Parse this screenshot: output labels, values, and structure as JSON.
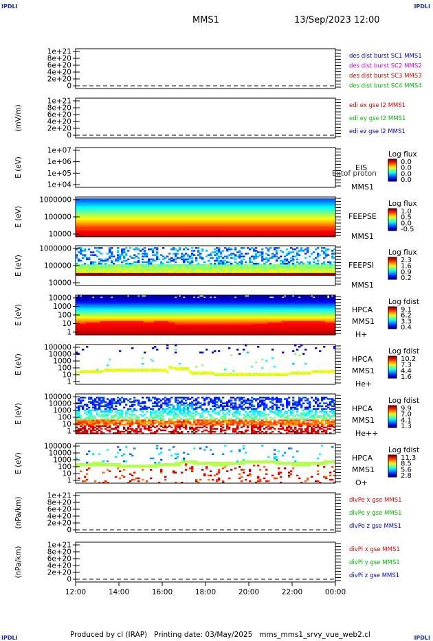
{
  "corners": {
    "tl": "IPDLI",
    "tr": "IPDLI",
    "bl": "IPDLI",
    "br": "IPDLI"
  },
  "header": {
    "spacecraft": "MMS1",
    "datetime": "13/Sep/2023 12:00"
  },
  "footer": "Produced by cl (IRAP)   Printing date: 03/May/2025   mms_mms1_srvy_vue_web2.cl",
  "colors": {
    "red": "#dd0000",
    "magenta": "#dd00dd",
    "green": "#00bb00",
    "blue": "#0000cc",
    "black": "#000000"
  },
  "chart_data": [
    {
      "type": "line",
      "id": "dist",
      "ylabel": "",
      "ticks": [
        "1e+21",
        "8e+20",
        "6e+20",
        "4e+20",
        "2e+20",
        "0"
      ],
      "legend": [
        {
          "text": "des dist burst SC1 MMS1",
          "color": "#0000cc"
        },
        {
          "text": "des dist burst SC2 MMS2",
          "color": "#dd00dd"
        },
        {
          "text": "des dist burst SC3 MMS3",
          "color": "#dd0000"
        },
        {
          "text": "des dist burst SC4 MMS4",
          "color": "#00bb00"
        }
      ],
      "series": []
    },
    {
      "type": "line",
      "id": "edi",
      "ylabel": "(mV/m)",
      "ticks": [
        "1e+21",
        "8e+20",
        "6e+20",
        "4e+20",
        "2e+20",
        "0"
      ],
      "legend": [
        {
          "text": "edi ex gse l2 MMS1",
          "color": "#dd0000"
        },
        {
          "text": "edi ey gse l2 MMS1",
          "color": "#00bb00"
        },
        {
          "text": "edi ez gse l2 MMS1",
          "color": "#0000cc"
        }
      ],
      "series": []
    },
    {
      "type": "heatmap",
      "id": "eis",
      "ylabel": "E (eV)",
      "ticks": [
        "1e+07",
        "1e+06",
        "1e+05",
        "1e+04"
      ],
      "labels": [
        "EIS",
        "MMS1"
      ],
      "overlay": "Extof proton",
      "colorbar": {
        "title": "Log flux",
        "ticks": [
          "0.0",
          "0.0",
          "0.0",
          "0.0"
        ]
      }
    },
    {
      "type": "heatmap",
      "id": "feeps_e",
      "ylabel": "E (eV)",
      "ticks": [
        "1000000",
        "100000",
        "10000"
      ],
      "labels": [
        "FEEPSE",
        "MMS1"
      ],
      "colorbar": {
        "title": "Log flux",
        "ticks": [
          "1.0",
          "0.5",
          "0.0",
          "-0.5"
        ]
      }
    },
    {
      "type": "heatmap",
      "id": "feeps_i",
      "ylabel": "E (eV)",
      "ticks": [
        "1000000",
        "100000",
        "10000"
      ],
      "labels": [
        "FEEPSI",
        "MMS1"
      ],
      "colorbar": {
        "title": "Log flux",
        "ticks": [
          "2.3",
          "1.6",
          "0.9",
          "0.2"
        ]
      }
    },
    {
      "type": "heatmap",
      "id": "hpca_h",
      "ylabel": "E (eV)",
      "ticks": [
        "10000",
        "1000",
        "100",
        "10",
        "1"
      ],
      "labels": [
        "HPCA",
        "MMS1",
        "H+"
      ],
      "colorbar": {
        "title": "Log fdist",
        "ticks": [
          "9.1",
          "6.2",
          "3.3",
          "0.4"
        ]
      }
    },
    {
      "type": "heatmap",
      "id": "hpca_he",
      "ylabel": "E (eV)",
      "ticks": [
        "100000",
        "10000",
        "1000",
        "100",
        "10",
        "1"
      ],
      "labels": [
        "HPCA",
        "MMS1",
        "He+"
      ],
      "colorbar": {
        "title": "Log fdist",
        "ticks": [
          "10.2",
          "7.3",
          "4.4",
          "1.6"
        ]
      }
    },
    {
      "type": "heatmap",
      "id": "hpca_hepp",
      "ylabel": "E (eV)",
      "ticks": [
        "100000",
        "10000",
        "1000",
        "100",
        "10",
        "1"
      ],
      "labels": [
        "HPCA",
        "MMS1",
        "He++"
      ],
      "colorbar": {
        "title": "Log fdist",
        "ticks": [
          "9.9",
          "7.0",
          "4.1",
          "1.3"
        ]
      }
    },
    {
      "type": "heatmap",
      "id": "hpca_o",
      "ylabel": "E (eV)",
      "ticks": [
        "100000",
        "10000",
        "1000",
        "100",
        "10",
        "1"
      ],
      "labels": [
        "HPCA",
        "MMS1",
        "O+"
      ],
      "colorbar": {
        "title": "Log fdist",
        "ticks": [
          "11.3",
          "8.5",
          "5.6",
          "2.8"
        ]
      }
    },
    {
      "type": "line",
      "id": "divpe",
      "ylabel": "(nPa/km)",
      "ticks": [
        "1e+21",
        "8e+20",
        "6e+20",
        "4e+20",
        "2e+20",
        "0"
      ],
      "legend": [
        {
          "text": "divPe x gse MMS1",
          "color": "#dd0000"
        },
        {
          "text": "divPe y gse MMS1",
          "color": "#00bb00"
        },
        {
          "text": "divPe z gse MMS1",
          "color": "#0000cc"
        }
      ],
      "series": []
    },
    {
      "type": "line",
      "id": "divpi",
      "ylabel": "(nPa/km)",
      "ticks": [
        "1e+21",
        "8e+20",
        "6e+20",
        "4e+20",
        "2e+20",
        "0"
      ],
      "legend": [
        {
          "text": "divPi x gse MMS1",
          "color": "#dd0000"
        },
        {
          "text": "divPi y gse MMS1",
          "color": "#00bb00"
        },
        {
          "text": "divPi z gse MMS1",
          "color": "#0000cc"
        }
      ],
      "series": []
    }
  ],
  "xaxis": {
    "ticks": [
      "12:00",
      "14:00",
      "16:00",
      "18:00",
      "20:00",
      "22:00",
      "00:00"
    ]
  }
}
